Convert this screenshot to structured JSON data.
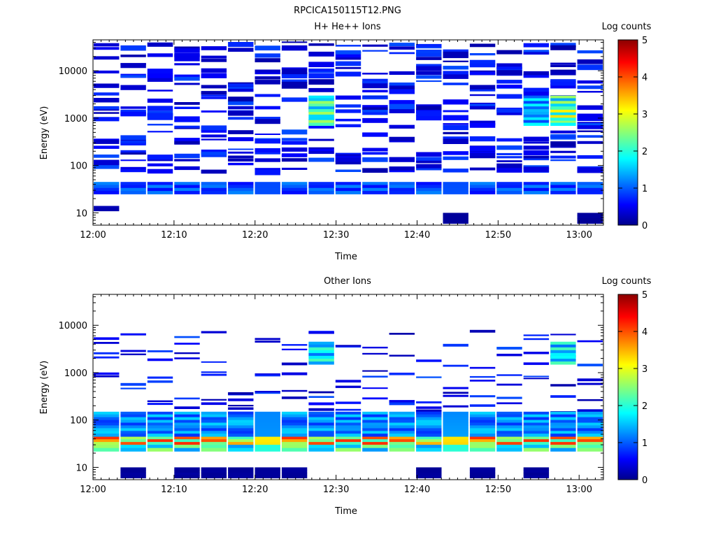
{
  "title": "RPCICA150115T12.PNG",
  "colorbar": {
    "label": "Log counts",
    "ticks": [
      "0",
      "1",
      "2",
      "3",
      "4",
      "5"
    ],
    "stops": [
      "#00008b",
      "#0000ff",
      "#00ffff",
      "#ffff00",
      "#ff0000",
      "#8b0000"
    ]
  },
  "chart_data": [
    {
      "type": "heatmap",
      "title": "H+ He++ Ions",
      "xlabel": "Time",
      "ylabel": "Energy (eV)",
      "yscale": "log",
      "ylim": [
        5.5,
        45000
      ],
      "xlim": [
        "12:00",
        "13:03"
      ],
      "x_ticks": [
        "12:00",
        "12:10",
        "12:20",
        "12:30",
        "12:40",
        "12:50",
        "13:00"
      ],
      "y_ticks": [
        "10",
        "100",
        "1000",
        "10000"
      ],
      "time_bins": [
        "12:02",
        "12:05",
        "12:08",
        "12:12",
        "12:15",
        "12:18",
        "12:21",
        "12:24",
        "12:28",
        "12:31",
        "12:34",
        "12:37",
        "12:40",
        "12:44",
        "12:47",
        "12:50",
        "12:53",
        "12:57",
        "13:00"
      ],
      "color_range": [
        0,
        5
      ],
      "description_of_cells": "log10 counts per time/energy bin",
      "cells": [
        {
          "bins": [
            0,
            1,
            2,
            3,
            4,
            5,
            6,
            7,
            8,
            9,
            10,
            11,
            12,
            13,
            14,
            15,
            16,
            17,
            18
          ],
          "energy_range": [
            25,
            45
          ],
          "value": 1.2
        },
        {
          "bins": [
            8,
            17
          ],
          "energy_range": [
            700,
            3000
          ],
          "value": 2.7
        },
        {
          "bins": [
            17
          ],
          "energy_range": [
            900,
            1500
          ],
          "value": 3.3
        },
        {
          "bins": [
            16
          ],
          "energy_range": [
            700,
            3000
          ],
          "value": 1.8
        },
        {
          "bins": [
            0
          ],
          "energy_range": [
            11,
            14
          ],
          "value": 0.2
        },
        {
          "bins": [
            13,
            18
          ],
          "energy_range": [
            6,
            10
          ],
          "value": 0.1
        }
      ]
    },
    {
      "type": "heatmap",
      "title": "Other Ions",
      "xlabel": "Time",
      "ylabel": "Energy (eV)",
      "yscale": "log",
      "ylim": [
        5.5,
        45000
      ],
      "xlim": [
        "12:00",
        "13:03"
      ],
      "x_ticks": [
        "12:00",
        "12:10",
        "12:20",
        "12:30",
        "12:40",
        "12:50",
        "13:00"
      ],
      "y_ticks": [
        "10",
        "100",
        "1000",
        "10000"
      ],
      "time_bins": [
        "12:02",
        "12:05",
        "12:08",
        "12:12",
        "12:15",
        "12:18",
        "12:21",
        "12:24",
        "12:28",
        "12:31",
        "12:34",
        "12:37",
        "12:40",
        "12:44",
        "12:47",
        "12:50",
        "12:53",
        "12:57",
        "13:00"
      ],
      "color_range": [
        0,
        5
      ],
      "description_of_cells": "log10 counts per time/energy bin",
      "cells": [
        {
          "bins": [
            0,
            1,
            2,
            3,
            4,
            5,
            6,
            7,
            8,
            9,
            10,
            11,
            12,
            13,
            14,
            15,
            16,
            17,
            18
          ],
          "energy_range": [
            30,
            45
          ],
          "value": 4.2
        },
        {
          "bins": [
            0,
            1,
            2,
            3,
            4,
            5,
            6,
            7,
            8,
            9,
            10,
            11,
            12,
            13,
            14,
            15,
            16,
            17,
            18
          ],
          "energy_range": [
            45,
            150
          ],
          "value": 1.6
        },
        {
          "bins": [
            0,
            1,
            2,
            3,
            4,
            5,
            6,
            7,
            8,
            9,
            10,
            11,
            12,
            13,
            14,
            15,
            16,
            17,
            18
          ],
          "energy_range": [
            22,
            30
          ],
          "value": 2.6
        },
        {
          "bins": [
            8,
            17
          ],
          "energy_range": [
            1500,
            4500
          ],
          "value": 2.2
        },
        {
          "bins": [
            1,
            3,
            4,
            5,
            6,
            7,
            12,
            14,
            16
          ],
          "energy_range": [
            6,
            10
          ],
          "value": 0.1
        }
      ]
    }
  ]
}
